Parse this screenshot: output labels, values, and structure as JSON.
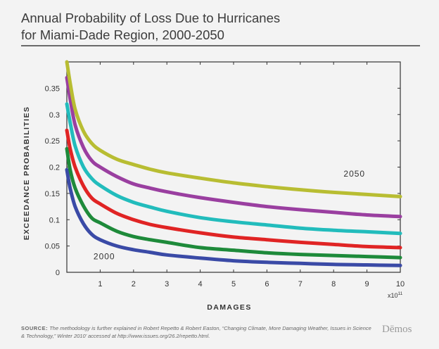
{
  "header": {
    "title_line1": "Annual Probability of Loss Due to Hurricanes",
    "title_line2": "for Miami-Dade Region, 2000-2050"
  },
  "footer": {
    "source_label": "SOURCE:",
    "source_text": "The methodology is further explained in Robert Repetto & Robert Easton, “Changing Climate, More Damaging Weather, Issues in Science & Technology,” Winter 2010’ accessed at http://www.issues.org/26.2/repetto.html.",
    "brand": "Dēmos"
  },
  "colors": {
    "background": "#f3f3f3",
    "axis": "#333333",
    "series": [
      "#3a4aa6",
      "#1e8a3a",
      "#e02424",
      "#22bcbc",
      "#9a3fa0",
      "#b8bd32"
    ]
  },
  "chart_data": {
    "type": "line",
    "xlabel": "DAMAGES",
    "ylabel": "EXCEEDANCE PROBABILITIES",
    "x_multiplier": "x10",
    "x_multiplier_exp": "11",
    "xlim": [
      0,
      10
    ],
    "ylim": [
      0,
      0.4
    ],
    "xticks": [
      1,
      2,
      3,
      4,
      5,
      6,
      7,
      8,
      9,
      10
    ],
    "yticks": [
      0,
      0.05,
      0.1,
      0.15,
      0.2,
      0.25,
      0.3,
      0.35
    ],
    "ytick_labels": [
      "0",
      "0.05",
      "0.1",
      "0.15",
      "0.2",
      "0.25",
      "0.3",
      "0.35"
    ],
    "annotations": [
      {
        "text": "2000",
        "x": 0.8,
        "y": 0.025
      },
      {
        "text": "2050",
        "x": 8.3,
        "y": 0.182
      }
    ],
    "x": [
      0,
      0.1,
      0.25,
      0.5,
      0.75,
      1,
      1.5,
      2,
      2.5,
      3,
      4,
      5,
      6,
      7,
      8,
      9,
      10
    ],
    "series": [
      {
        "color": "#3a4aa6",
        "values": [
          0.195,
          0.16,
          0.125,
          0.092,
          0.072,
          0.062,
          0.05,
          0.043,
          0.038,
          0.033,
          0.027,
          0.022,
          0.019,
          0.017,
          0.015,
          0.014,
          0.013
        ]
      },
      {
        "color": "#1e8a3a",
        "values": [
          0.235,
          0.195,
          0.16,
          0.126,
          0.103,
          0.094,
          0.078,
          0.068,
          0.062,
          0.057,
          0.047,
          0.042,
          0.037,
          0.034,
          0.032,
          0.03,
          0.028
        ]
      },
      {
        "color": "#e02424",
        "values": [
          0.27,
          0.235,
          0.2,
          0.164,
          0.141,
          0.13,
          0.112,
          0.1,
          0.091,
          0.085,
          0.075,
          0.067,
          0.062,
          0.057,
          0.053,
          0.049,
          0.047
        ]
      },
      {
        "color": "#22bcbc",
        "values": [
          0.32,
          0.285,
          0.24,
          0.2,
          0.178,
          0.165,
          0.146,
          0.133,
          0.124,
          0.116,
          0.104,
          0.096,
          0.09,
          0.084,
          0.08,
          0.077,
          0.074
        ]
      },
      {
        "color": "#9a3fa0",
        "values": [
          0.37,
          0.33,
          0.28,
          0.237,
          0.212,
          0.2,
          0.182,
          0.168,
          0.16,
          0.153,
          0.142,
          0.133,
          0.125,
          0.119,
          0.114,
          0.109,
          0.106
        ]
      },
      {
        "color": "#b8bd32",
        "values": [
          0.4,
          0.36,
          0.31,
          0.268,
          0.245,
          0.232,
          0.215,
          0.205,
          0.196,
          0.189,
          0.179,
          0.17,
          0.163,
          0.157,
          0.152,
          0.148,
          0.144
        ]
      }
    ]
  }
}
